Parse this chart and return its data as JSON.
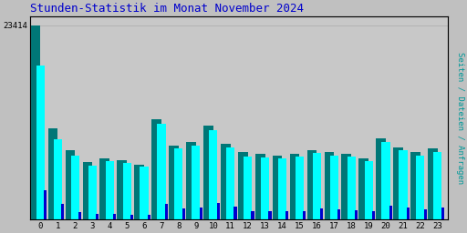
{
  "title": "Stunden-Statistik im Monat November 2024",
  "title_color": "#0000cc",
  "background_color": "#c0c0c0",
  "plot_bg_color": "#c8c8c8",
  "ylabel_right": "Seiten / Dateien / Anfragen",
  "hours": [
    0,
    1,
    2,
    3,
    4,
    5,
    6,
    7,
    8,
    9,
    10,
    11,
    12,
    13,
    14,
    15,
    16,
    17,
    18,
    19,
    20,
    21,
    22,
    23
  ],
  "max_label": "23414",
  "seiten": [
    23414,
    10900,
    8300,
    6900,
    7300,
    7100,
    6600,
    12100,
    8900,
    9300,
    11300,
    9100,
    8100,
    7900,
    7700,
    7900,
    8300,
    8100,
    7900,
    7300,
    9700,
    8700,
    8100,
    8500
  ],
  "dateien": [
    18500,
    9600,
    7700,
    6500,
    7000,
    6800,
    6300,
    11500,
    8500,
    8900,
    10700,
    8600,
    7500,
    7400,
    7300,
    7500,
    8000,
    7700,
    7600,
    7000,
    9300,
    8300,
    7700,
    8100
  ],
  "anfragen": [
    3500,
    1800,
    900,
    600,
    600,
    550,
    480,
    1800,
    1300,
    1400,
    1900,
    1500,
    1000,
    1000,
    950,
    1000,
    1300,
    1200,
    1100,
    950,
    1600,
    1400,
    1200,
    1400
  ],
  "color_seiten": "#007777",
  "color_dateien": "#00ffff",
  "color_anfragen": "#0000cc",
  "ylim": [
    0,
    24500
  ],
  "font_family": "monospace",
  "title_fontsize": 9,
  "tick_fontsize": 6.5
}
